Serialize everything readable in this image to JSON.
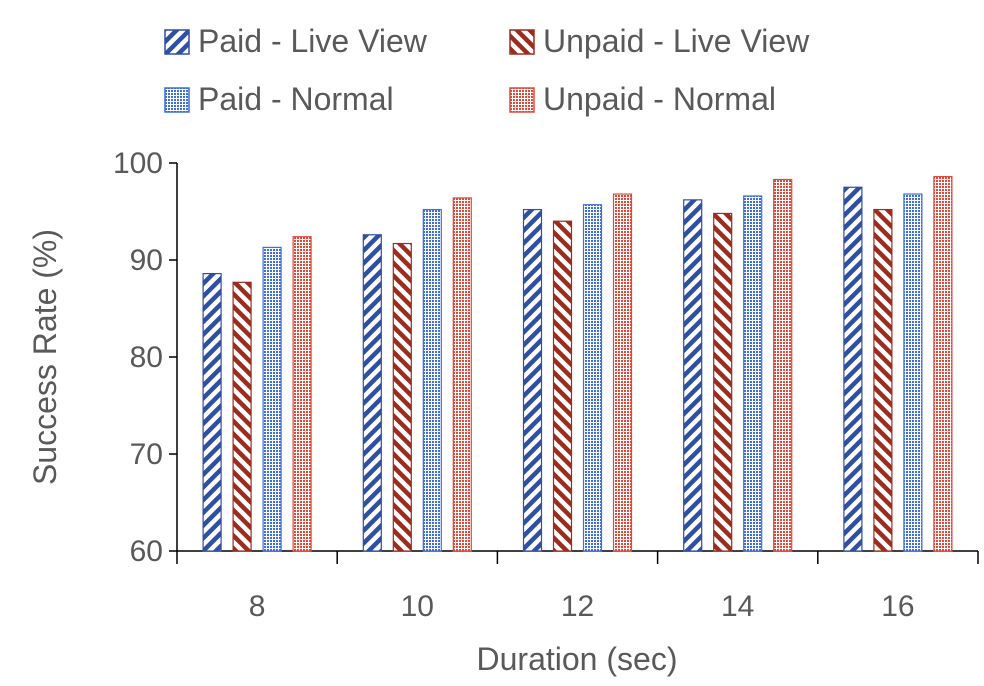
{
  "chart_data": {
    "type": "bar",
    "categories": [
      "8",
      "10",
      "12",
      "14",
      "16"
    ],
    "series": [
      {
        "name": "Paid - Live View",
        "values": [
          88.6,
          92.6,
          95.2,
          96.2,
          97.5
        ],
        "color": "#2F4FA2",
        "pattern": "diagonal-stripes-down"
      },
      {
        "name": "Unpaid - Live View",
        "values": [
          87.7,
          91.7,
          94.0,
          94.8,
          95.2
        ],
        "color": "#9B2D1F",
        "pattern": "diagonal-stripes-up"
      },
      {
        "name": "Paid - Normal",
        "values": [
          91.3,
          95.2,
          95.7,
          96.6,
          96.8
        ],
        "color": "#3F6FD8",
        "pattern": "dotted-grid"
      },
      {
        "name": "Unpaid - Normal",
        "values": [
          92.4,
          96.4,
          96.8,
          98.3,
          98.6
        ],
        "color": "#E0493A",
        "pattern": "dotted-grid"
      }
    ],
    "xlabel": "Duration (sec)",
    "ylabel": "Success Rate (%)",
    "ylim": [
      60,
      100
    ],
    "yticks": [
      "60",
      "70",
      "80",
      "90",
      "100"
    ],
    "grid": false,
    "legend_position": "top"
  }
}
